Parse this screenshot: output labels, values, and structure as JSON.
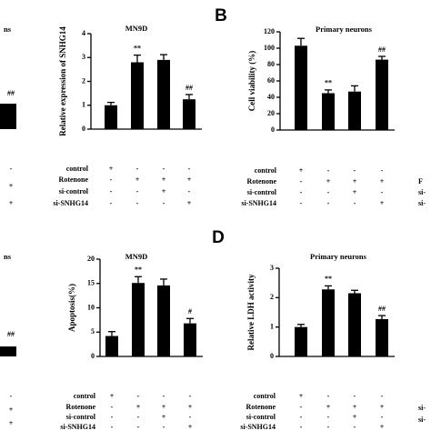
{
  "panel_labels": [
    "B",
    "D"
  ],
  "fragments": {
    "top_left": {
      "title": "ns",
      "annotation": "##",
      "signs": [
        "-",
        "+",
        "+"
      ]
    },
    "bottom_left": {
      "title": "ns",
      "annotation": "##",
      "signs": [
        "-",
        "+",
        "+"
      ]
    },
    "top_right": [
      "F",
      "si-",
      "si-"
    ],
    "bottom_right": [
      "si-",
      "si-"
    ]
  },
  "chart_data": [
    {
      "type": "bar",
      "title": "MN9D",
      "y_label": "Relative expression of SNHG14",
      "categories": [
        null,
        null,
        null,
        null
      ],
      "values": [
        1.0,
        2.8,
        2.9,
        1.25
      ],
      "errors": [
        0.12,
        0.3,
        0.22,
        0.2
      ],
      "annotations": [
        null,
        "**",
        null,
        "##"
      ],
      "color": "#000000",
      "ylim": [
        0,
        4
      ],
      "yticks": [
        0,
        1,
        2,
        3,
        4
      ],
      "table": {
        "rows": [
          "control",
          "Rotenone",
          "si-control",
          "si-SNHG14"
        ],
        "signs": [
          [
            "+",
            "-",
            "-",
            "-"
          ],
          [
            "-",
            "+",
            "+",
            "+"
          ],
          [
            "-",
            "-",
            "+",
            "-"
          ],
          [
            "-",
            "-",
            "-",
            "+"
          ]
        ]
      }
    },
    {
      "type": "bar",
      "title": "Primary neurons",
      "y_label": "Cell viability (%)",
      "categories": [
        null,
        null,
        null,
        null
      ],
      "values": [
        103,
        45,
        47,
        86
      ],
      "errors": [
        9,
        4,
        7,
        4
      ],
      "annotations": [
        null,
        "**",
        null,
        "##"
      ],
      "color": "#000000",
      "ylim": [
        0,
        120
      ],
      "yticks": [
        0,
        20,
        40,
        60,
        80,
        100,
        120
      ],
      "table": {
        "rows": [
          "control",
          "Rotenone",
          "si-control",
          "si-SNHG14"
        ],
        "signs": [
          [
            "+",
            "-",
            "-",
            "-"
          ],
          [
            "-",
            "+",
            "+",
            "+"
          ],
          [
            "-",
            "-",
            "+",
            "-"
          ],
          [
            "-",
            "-",
            "-",
            "+"
          ]
        ]
      }
    },
    {
      "type": "bar",
      "title": "MN9D",
      "y_label": "Apoptosis(%)",
      "categories": [
        null,
        null,
        null,
        null
      ],
      "values": [
        4.2,
        15.1,
        14.6,
        6.8
      ],
      "errors": [
        0.9,
        1.3,
        1.3,
        1.0
      ],
      "annotations": [
        null,
        "**",
        null,
        "#"
      ],
      "color": "#000000",
      "ylim": [
        0,
        20
      ],
      "yticks": [
        0,
        5,
        10,
        15,
        20
      ],
      "table": {
        "rows": [
          "control",
          "Rotenone",
          "si-control",
          "si-SNHG14"
        ],
        "signs": [
          [
            "+",
            "-",
            "-",
            "-"
          ],
          [
            "-",
            "+",
            "+",
            "+"
          ],
          [
            "-",
            "-",
            "+",
            "-"
          ],
          [
            "-",
            "-",
            "-",
            "+"
          ]
        ]
      }
    },
    {
      "type": "bar",
      "title": "Primary neurons",
      "y_label": "Relative LDH activity",
      "categories": [
        null,
        null,
        null,
        null
      ],
      "values": [
        1.0,
        2.28,
        2.15,
        1.27
      ],
      "errors": [
        0.09,
        0.12,
        0.1,
        0.12
      ],
      "annotations": [
        null,
        "**",
        null,
        "##"
      ],
      "color": "#000000",
      "ylim": [
        0,
        3
      ],
      "yticks": [
        0,
        1,
        2,
        3
      ],
      "table": {
        "rows": [
          "control",
          "Rotenone",
          "si-control",
          "si-SNHG14"
        ],
        "signs": [
          [
            "+",
            "-",
            "-",
            "-"
          ],
          [
            "-",
            "+",
            "+",
            "+"
          ],
          [
            "-",
            "-",
            "+",
            "-"
          ],
          [
            "-",
            "-",
            "-",
            "+"
          ]
        ]
      }
    }
  ]
}
